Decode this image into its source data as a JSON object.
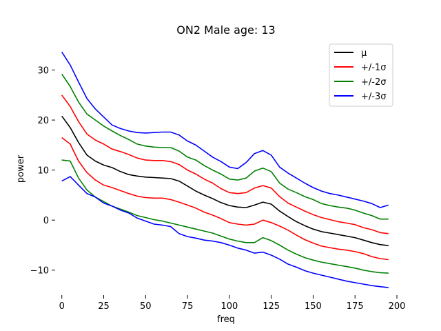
{
  "chart_data": {
    "type": "line",
    "title": "ON2 Male age: 13",
    "xlabel": "freq",
    "ylabel": "power",
    "xlim": [
      -4,
      200
    ],
    "ylim": [
      -15,
      36
    ],
    "xticks": [
      0,
      25,
      50,
      75,
      100,
      125,
      150,
      175,
      200
    ],
    "yticks": [
      -10,
      0,
      10,
      20,
      30
    ],
    "grid": false,
    "legend_position": "top-right",
    "x": [
      0,
      5,
      10,
      15,
      20,
      25,
      30,
      35,
      40,
      45,
      50,
      55,
      60,
      65,
      70,
      75,
      80,
      85,
      90,
      95,
      100,
      105,
      110,
      115,
      120,
      125,
      130,
      135,
      140,
      145,
      150,
      155,
      160,
      165,
      170,
      175,
      180,
      185,
      190,
      195
    ],
    "series": [
      {
        "name": "μ",
        "color": "#000000",
        "values": [
          20.8,
          18.5,
          15.5,
          13.0,
          11.8,
          11.0,
          10.5,
          9.7,
          9.1,
          8.8,
          8.6,
          8.5,
          8.4,
          8.3,
          7.8,
          6.8,
          5.8,
          5.0,
          4.3,
          3.5,
          2.9,
          2.6,
          2.5,
          3.0,
          3.6,
          3.2,
          1.8,
          0.7,
          -0.3,
          -1.1,
          -1.8,
          -2.3,
          -2.6,
          -2.9,
          -3.2,
          -3.5,
          -4.0,
          -4.5,
          -4.9,
          -5.1
        ]
      },
      {
        "name": "+/-1σ",
        "color": "#ff0000",
        "values": [
          25.0,
          22.7,
          19.7,
          17.2,
          16.0,
          15.2,
          14.2,
          13.7,
          13.1,
          12.4,
          12.0,
          11.9,
          11.9,
          11.7,
          11.1,
          10.0,
          9.2,
          8.2,
          7.4,
          6.3,
          5.5,
          5.3,
          5.5,
          6.4,
          6.9,
          6.4,
          4.7,
          3.4,
          2.6,
          1.8,
          1.1,
          0.5,
          0.1,
          -0.3,
          -0.6,
          -0.9,
          -1.5,
          -1.9,
          -2.5,
          -2.7
        ]
      },
      {
        "name": "",
        "color": "#ff0000",
        "values": [
          16.5,
          15.2,
          11.8,
          9.5,
          8.0,
          7.0,
          6.5,
          5.9,
          5.3,
          4.8,
          4.5,
          4.4,
          4.4,
          4.1,
          3.6,
          3.0,
          2.4,
          1.6,
          1.0,
          0.3,
          -0.5,
          -0.8,
          -1.0,
          -0.8,
          0.0,
          -0.5,
          -1.2,
          -2.0,
          -3.0,
          -3.9,
          -4.6,
          -5.2,
          -5.5,
          -5.8,
          -6.0,
          -6.3,
          -6.7,
          -7.3,
          -7.7,
          -7.9
        ]
      },
      {
        "name": "+/-2σ",
        "color": "#008000",
        "values": [
          29.2,
          26.7,
          23.6,
          21.2,
          20.0,
          18.8,
          17.8,
          16.9,
          16.1,
          15.2,
          14.8,
          14.6,
          14.5,
          14.5,
          13.8,
          12.6,
          12.0,
          10.9,
          10.0,
          9.2,
          8.2,
          8.0,
          8.4,
          9.8,
          10.4,
          9.7,
          7.4,
          6.2,
          5.5,
          4.7,
          4.1,
          3.3,
          2.9,
          2.6,
          2.4,
          2.0,
          1.4,
          0.9,
          0.2,
          0.2
        ]
      },
      {
        "name": "",
        "color": "#008000",
        "values": [
          12.0,
          11.8,
          8.4,
          6.0,
          4.6,
          3.7,
          2.8,
          2.2,
          1.6,
          0.9,
          0.5,
          0.1,
          -0.2,
          -0.6,
          -1.0,
          -1.4,
          -1.8,
          -2.2,
          -2.6,
          -3.2,
          -3.8,
          -4.2,
          -4.5,
          -4.5,
          -3.5,
          -4.1,
          -5.0,
          -6.0,
          -6.8,
          -7.5,
          -8.0,
          -8.4,
          -8.7,
          -9.0,
          -9.3,
          -9.6,
          -10.0,
          -10.3,
          -10.5,
          -10.6
        ]
      },
      {
        "name": "+/-3σ",
        "color": "#0000ff",
        "values": [
          33.6,
          31.0,
          27.6,
          24.3,
          22.2,
          20.6,
          19.0,
          18.3,
          17.8,
          17.5,
          17.4,
          17.5,
          17.6,
          17.6,
          17.0,
          15.8,
          15.0,
          13.8,
          12.6,
          11.7,
          10.6,
          10.3,
          11.5,
          13.3,
          13.9,
          13.0,
          10.6,
          9.4,
          8.4,
          7.4,
          6.5,
          5.8,
          5.3,
          5.0,
          4.6,
          4.2,
          3.8,
          3.3,
          2.5,
          3.0
        ]
      },
      {
        "name": "",
        "color": "#0000ff",
        "values": [
          7.8,
          8.7,
          7.0,
          5.3,
          4.6,
          3.4,
          2.8,
          2.0,
          1.4,
          0.4,
          -0.2,
          -0.8,
          -1.0,
          -1.3,
          -2.7,
          -3.3,
          -3.6,
          -4.0,
          -4.2,
          -4.5,
          -5.0,
          -5.6,
          -6.0,
          -6.6,
          -6.4,
          -7.0,
          -7.8,
          -8.8,
          -9.4,
          -10.1,
          -10.6,
          -11.0,
          -11.4,
          -11.8,
          -12.2,
          -12.5,
          -12.8,
          -13.1,
          -13.3,
          -13.5
        ]
      }
    ]
  }
}
